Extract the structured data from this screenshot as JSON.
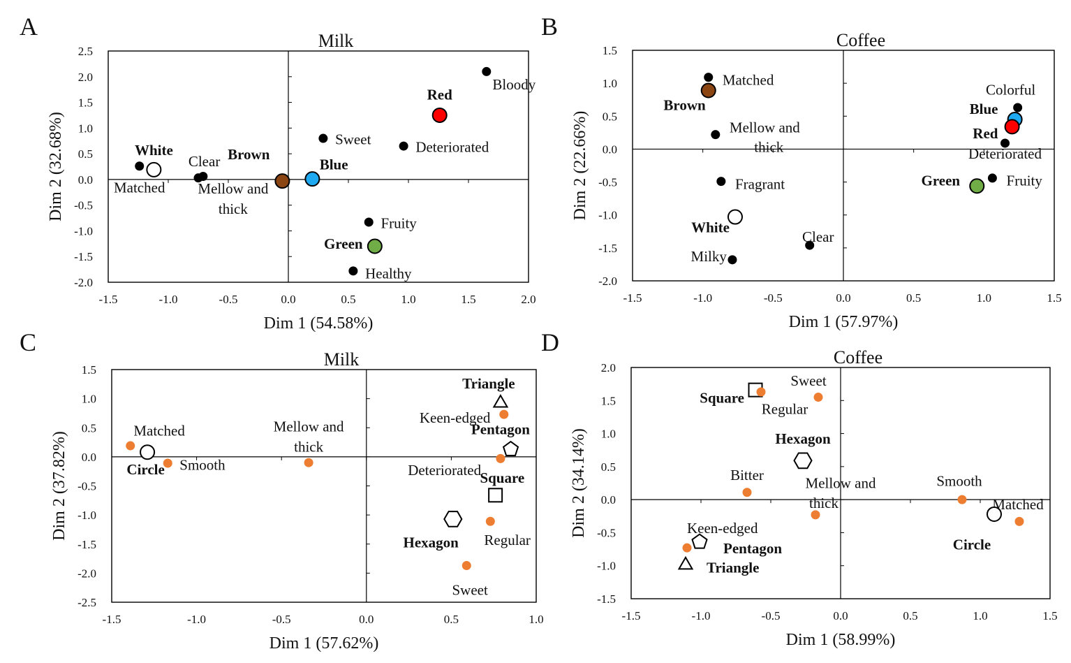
{
  "colors": {
    "attribute": "#000000",
    "orange": "#ED7D31",
    "Red": "#FF0000",
    "Blue": "#1EA9F0",
    "Green": "#70AD47",
    "Brown": "#8B4513",
    "White": "#FFFFFF"
  },
  "chart_data": [
    {
      "panel": "A",
      "title": "Milk",
      "type": "scatter",
      "xlabel": "Dim 1 (54.58%)",
      "ylabel": "Dim 2 (32.68%)",
      "xlim": [
        -1.5,
        2.0
      ],
      "ylim": [
        -2.0,
        2.5
      ],
      "xticks": [
        -1.5,
        -1.0,
        -0.5,
        0.0,
        0.5,
        1.0,
        1.5,
        2.0
      ],
      "yticks": [
        -2.0,
        -1.5,
        -1.0,
        -0.5,
        0.0,
        0.5,
        1.0,
        1.5,
        2.0,
        2.5
      ],
      "tick_decimals": 1,
      "points": [
        {
          "label": "Bloody",
          "x": 1.65,
          "y": 2.1,
          "marker": "dot",
          "color": "attribute",
          "bold": false,
          "lx": 0.05,
          "ly": -0.25,
          "anchor": "start"
        },
        {
          "label": "Red",
          "x": 1.26,
          "y": 1.25,
          "marker": "circle",
          "color": "Red",
          "bold": true,
          "lx": 0,
          "ly": 0.4,
          "anchor": "middle"
        },
        {
          "label": "Sweet",
          "x": 0.29,
          "y": 0.8,
          "marker": "dot",
          "color": "attribute",
          "bold": false,
          "lx": 0.1,
          "ly": -0.02,
          "anchor": "start"
        },
        {
          "label": "Deteriorated",
          "x": 0.96,
          "y": 0.65,
          "marker": "dot",
          "color": "attribute",
          "bold": false,
          "lx": 0.1,
          "ly": -0.02,
          "anchor": "start"
        },
        {
          "label": "Blue",
          "x": 0.2,
          "y": 0.01,
          "marker": "circle",
          "color": "Blue",
          "bold": true,
          "lx": 0.06,
          "ly": 0.28,
          "anchor": "start"
        },
        {
          "label": "Brown",
          "x": -0.05,
          "y": -0.03,
          "marker": "circle",
          "color": "Brown",
          "bold": true,
          "lx": -0.28,
          "ly": 0.52,
          "anchor": "middle"
        },
        {
          "label": "White",
          "x": -1.12,
          "y": 0.19,
          "marker": "circle",
          "color": "White",
          "bold": true,
          "lx": 0.0,
          "ly": 0.38,
          "anchor": "middle"
        },
        {
          "label": "Matched",
          "x": -1.24,
          "y": 0.26,
          "marker": "dot",
          "color": "attribute",
          "bold": false,
          "lx": 0.0,
          "ly": -0.42,
          "anchor": "middle"
        },
        {
          "label": "Clear",
          "x": -0.75,
          "y": 0.03,
          "marker": "dot",
          "color": "attribute",
          "bold": false,
          "lx": 0.05,
          "ly": 0.32,
          "anchor": "middle"
        },
        {
          "label": "",
          "x": -0.71,
          "y": 0.06,
          "marker": "dot",
          "color": "attribute",
          "bold": false,
          "lx": 0,
          "ly": 0,
          "anchor": "middle"
        },
        {
          "label": "Mellow and",
          "x": -0.46,
          "y": -0.18,
          "marker": "none",
          "color": "attribute",
          "bold": false,
          "lx": 0,
          "ly": 0,
          "anchor": "middle"
        },
        {
          "label": "thick",
          "x": -0.46,
          "y": -0.57,
          "marker": "none",
          "color": "attribute",
          "bold": false,
          "lx": 0,
          "ly": 0,
          "anchor": "middle"
        },
        {
          "label": "Fruity",
          "x": 0.67,
          "y": -0.83,
          "marker": "dot",
          "color": "attribute",
          "bold": false,
          "lx": 0.1,
          "ly": -0.02,
          "anchor": "start"
        },
        {
          "label": "Green",
          "x": 0.72,
          "y": -1.3,
          "marker": "circle",
          "color": "Green",
          "bold": true,
          "lx": -0.1,
          "ly": 0.05,
          "anchor": "end"
        },
        {
          "label": "Healthy",
          "x": 0.54,
          "y": -1.78,
          "marker": "dot",
          "color": "attribute",
          "bold": false,
          "lx": 0.1,
          "ly": -0.05,
          "anchor": "start"
        }
      ]
    },
    {
      "panel": "B",
      "title": "Coffee",
      "type": "scatter",
      "xlabel": "Dim 1 (57.97%)",
      "ylabel": "Dim 2 (22.66%)",
      "xlim": [
        -1.5,
        1.5
      ],
      "ylim": [
        -2.0,
        1.5
      ],
      "xticks": [
        -1.5,
        -1.0,
        -0.5,
        0.0,
        0.5,
        1.0,
        1.5
      ],
      "yticks": [
        -2.0,
        -1.5,
        -1.0,
        -0.5,
        0.0,
        0.5,
        1.0,
        1.5
      ],
      "tick_decimals": 1,
      "points": [
        {
          "label": "Matched",
          "x": -0.96,
          "y": 1.09,
          "marker": "dot",
          "color": "attribute",
          "bold": false,
          "lx": 0.1,
          "ly": -0.04,
          "anchor": "start"
        },
        {
          "label": "Brown",
          "x": -0.96,
          "y": 0.89,
          "marker": "circle",
          "color": "Brown",
          "bold": true,
          "lx": -0.02,
          "ly": -0.22,
          "anchor": "end"
        },
        {
          "label": "Mellow and",
          "x": -0.91,
          "y": 0.22,
          "marker": "dot",
          "color": "attribute",
          "bold": false,
          "lx": 0.1,
          "ly": 0.11,
          "anchor": "start"
        },
        {
          "label": "thick",
          "x": -0.53,
          "y": 0.03,
          "marker": "none",
          "color": "attribute",
          "bold": false,
          "lx": 0,
          "ly": 0,
          "anchor": "middle"
        },
        {
          "label": "Fragrant",
          "x": -0.87,
          "y": -0.49,
          "marker": "dot",
          "color": "attribute",
          "bold": false,
          "lx": 0.1,
          "ly": -0.04,
          "anchor": "start"
        },
        {
          "label": "White",
          "x": -0.77,
          "y": -1.03,
          "marker": "circle",
          "color": "White",
          "bold": true,
          "lx": -0.04,
          "ly": -0.16,
          "anchor": "end"
        },
        {
          "label": "Clear",
          "x": -0.24,
          "y": -1.46,
          "marker": "dot",
          "color": "attribute",
          "bold": false,
          "lx": 0.06,
          "ly": 0.13,
          "anchor": "middle"
        },
        {
          "label": "Milky",
          "x": -0.79,
          "y": -1.68,
          "marker": "dot",
          "color": "attribute",
          "bold": false,
          "lx": -0.04,
          "ly": 0.05,
          "anchor": "end"
        },
        {
          "label": "Colorful",
          "x": 1.24,
          "y": 0.63,
          "marker": "dot",
          "color": "attribute",
          "bold": false,
          "lx": -0.05,
          "ly": 0.27,
          "anchor": "middle"
        },
        {
          "label": "Blue",
          "x": 1.22,
          "y": 0.45,
          "marker": "circle",
          "color": "Blue",
          "bold": true,
          "lx": -0.12,
          "ly": 0.16,
          "anchor": "end"
        },
        {
          "label": "Red",
          "x": 1.2,
          "y": 0.34,
          "marker": "circle",
          "color": "Red",
          "bold": true,
          "lx": -0.1,
          "ly": -0.1,
          "anchor": "end"
        },
        {
          "label": "Deteriorated",
          "x": 1.15,
          "y": 0.09,
          "marker": "dot",
          "color": "attribute",
          "bold": false,
          "lx": 0.0,
          "ly": -0.16,
          "anchor": "middle"
        },
        {
          "label": "Fruity",
          "x": 1.06,
          "y": -0.44,
          "marker": "dot",
          "color": "attribute",
          "bold": false,
          "lx": 0.1,
          "ly": -0.04,
          "anchor": "start"
        },
        {
          "label": "Green",
          "x": 0.95,
          "y": -0.56,
          "marker": "circle",
          "color": "Green",
          "bold": true,
          "lx": -0.12,
          "ly": 0.08,
          "anchor": "end"
        }
      ]
    },
    {
      "panel": "C",
      "title": "Milk",
      "type": "scatter",
      "xlabel": "Dim 1 (57.62%)",
      "ylabel": "Dim 2 (37.82%)",
      "xlim": [
        -1.5,
        1.0
      ],
      "ylim": [
        -2.5,
        1.5
      ],
      "xticks": [
        -1.5,
        -1.0,
        -0.5,
        0.0,
        0.5,
        1.0
      ],
      "yticks": [
        -2.5,
        -2.0,
        -1.5,
        -1.0,
        -0.5,
        0.0,
        0.5,
        1.0,
        1.5
      ],
      "tick_decimals": 1,
      "points": [
        {
          "label": "Triangle",
          "x": 0.79,
          "y": 0.96,
          "marker": "triangle",
          "color": "White",
          "bold": true,
          "lx": -0.07,
          "ly": 0.3,
          "anchor": "middle"
        },
        {
          "label": "Keen-edged",
          "x": 0.81,
          "y": 0.73,
          "marker": "odot",
          "color": "orange",
          "bold": false,
          "lx": -0.08,
          "ly": -0.06,
          "anchor": "end"
        },
        {
          "label": "Pentagon",
          "x": 0.85,
          "y": 0.13,
          "marker": "pentagon",
          "color": "White",
          "bold": true,
          "lx": -0.06,
          "ly": 0.34,
          "anchor": "middle"
        },
        {
          "label": "Deteriorated",
          "x": 0.79,
          "y": -0.03,
          "marker": "odot",
          "color": "orange",
          "bold": false,
          "lx": -0.33,
          "ly": -0.2,
          "anchor": "middle"
        },
        {
          "label": "Square",
          "x": 0.76,
          "y": -0.66,
          "marker": "square",
          "color": "White",
          "bold": true,
          "lx": 0.04,
          "ly": 0.3,
          "anchor": "middle"
        },
        {
          "label": "Hexagon",
          "x": 0.51,
          "y": -1.07,
          "marker": "hexagon",
          "color": "White",
          "bold": true,
          "lx": -0.13,
          "ly": -0.4,
          "anchor": "middle"
        },
        {
          "label": "Regular",
          "x": 0.73,
          "y": -1.11,
          "marker": "odot",
          "color": "orange",
          "bold": false,
          "lx": 0.1,
          "ly": -0.32,
          "anchor": "middle"
        },
        {
          "label": "Sweet",
          "x": 0.59,
          "y": -1.87,
          "marker": "odot",
          "color": "orange",
          "bold": false,
          "lx": 0.02,
          "ly": -0.42,
          "anchor": "middle"
        },
        {
          "label": "Matched",
          "x": -1.39,
          "y": 0.19,
          "marker": "odot",
          "color": "orange",
          "bold": false,
          "lx": 0.17,
          "ly": 0.26,
          "anchor": "middle"
        },
        {
          "label": "Circle",
          "x": -1.29,
          "y": 0.08,
          "marker": "circle",
          "color": "White",
          "bold": true,
          "lx": -0.01,
          "ly": -0.3,
          "anchor": "middle"
        },
        {
          "label": "Smooth",
          "x": -1.17,
          "y": -0.11,
          "marker": "odot",
          "color": "orange",
          "bold": false,
          "lx": 0.07,
          "ly": -0.03,
          "anchor": "start"
        },
        {
          "label": "Mellow and",
          "x": -0.34,
          "y": 0.52,
          "marker": "none",
          "color": "attribute",
          "bold": false,
          "lx": 0,
          "ly": 0,
          "anchor": "middle"
        },
        {
          "label": "thick",
          "x": -0.34,
          "y": 0.17,
          "marker": "none",
          "color": "attribute",
          "bold": false,
          "lx": 0,
          "ly": 0,
          "anchor": "middle"
        },
        {
          "label": "",
          "x": -0.34,
          "y": -0.1,
          "marker": "odot",
          "color": "orange",
          "bold": false,
          "lx": 0,
          "ly": 0,
          "anchor": "middle"
        }
      ]
    },
    {
      "panel": "D",
      "title": "Coffee",
      "type": "scatter",
      "xlabel": "Dim 1 (58.99%)",
      "ylabel": "Dim 2 (34.14%)",
      "xlim": [
        -1.5,
        1.5
      ],
      "ylim": [
        -1.5,
        2.0
      ],
      "xticks": [
        -1.5,
        -1.0,
        -0.5,
        0.0,
        0.5,
        1.0,
        1.5
      ],
      "yticks": [
        -1.5,
        -1.0,
        -0.5,
        0.0,
        0.5,
        1.0,
        1.5,
        2.0
      ],
      "tick_decimals": 1,
      "points": [
        {
          "label": "Square",
          "x": -0.61,
          "y": 1.66,
          "marker": "square",
          "color": "White",
          "bold": true,
          "lx": -0.08,
          "ly": -0.12,
          "anchor": "end"
        },
        {
          "label": "Sweet",
          "x": -0.57,
          "y": 1.63,
          "marker": "odot",
          "color": "orange",
          "bold": false,
          "lx": 0.34,
          "ly": 0.17,
          "anchor": "middle"
        },
        {
          "label": "Regular",
          "x": -0.16,
          "y": 1.55,
          "marker": "odot",
          "color": "orange",
          "bold": false,
          "lx": -0.24,
          "ly": -0.18,
          "anchor": "middle"
        },
        {
          "label": "Hexagon",
          "x": -0.27,
          "y": 0.59,
          "marker": "hexagon",
          "color": "White",
          "bold": true,
          "lx": 0.0,
          "ly": 0.33,
          "anchor": "middle"
        },
        {
          "label": "Bitter",
          "x": -0.67,
          "y": 0.11,
          "marker": "odot",
          "color": "orange",
          "bold": false,
          "lx": 0.0,
          "ly": 0.26,
          "anchor": "middle"
        },
        {
          "label": "Mellow and",
          "x": 0.0,
          "y": 0.25,
          "marker": "none",
          "color": "attribute",
          "bold": false,
          "lx": 0,
          "ly": 0,
          "anchor": "middle"
        },
        {
          "label": "thick",
          "x": -0.12,
          "y": -0.05,
          "marker": "none",
          "color": "attribute",
          "bold": false,
          "lx": 0,
          "ly": 0,
          "anchor": "middle"
        },
        {
          "label": "",
          "x": -0.18,
          "y": -0.23,
          "marker": "odot",
          "color": "orange",
          "bold": false,
          "lx": 0,
          "ly": 0,
          "anchor": "middle"
        },
        {
          "label": "Keen-edged",
          "x": -1.1,
          "y": -0.73,
          "marker": "odot",
          "color": "orange",
          "bold": false,
          "lx": 0.0,
          "ly": 0.3,
          "anchor": "start"
        },
        {
          "label": "Pentagon",
          "x": -1.01,
          "y": -0.64,
          "marker": "pentagon",
          "color": "White",
          "bold": true,
          "lx": 0.17,
          "ly": -0.1,
          "anchor": "start"
        },
        {
          "label": "Triangle",
          "x": -1.11,
          "y": -0.96,
          "marker": "triangle",
          "color": "White",
          "bold": true,
          "lx": 0.15,
          "ly": -0.07,
          "anchor": "start"
        },
        {
          "label": "Smooth",
          "x": 0.87,
          "y": 0.0,
          "marker": "odot",
          "color": "orange",
          "bold": false,
          "lx": -0.02,
          "ly": 0.28,
          "anchor": "middle"
        },
        {
          "label": "Matched",
          "x": 1.28,
          "y": -0.33,
          "marker": "odot",
          "color": "orange",
          "bold": false,
          "lx": -0.01,
          "ly": 0.26,
          "anchor": "middle"
        },
        {
          "label": "Circle",
          "x": 1.1,
          "y": -0.22,
          "marker": "circle",
          "color": "White",
          "bold": true,
          "lx": -0.16,
          "ly": -0.46,
          "anchor": "middle"
        }
      ]
    }
  ]
}
